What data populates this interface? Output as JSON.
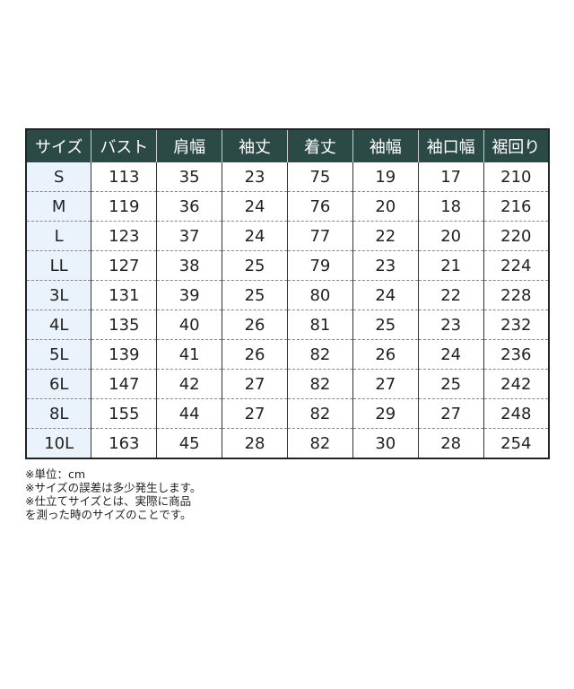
{
  "table": {
    "headers": [
      "サイズ",
      "バスト",
      "肩幅",
      "袖丈",
      "着丈",
      "袖幅",
      "袖口幅",
      "裾回り"
    ],
    "rows": [
      [
        "S",
        "113",
        "35",
        "23",
        "75",
        "19",
        "17",
        "210"
      ],
      [
        "M",
        "119",
        "36",
        "24",
        "76",
        "20",
        "18",
        "216"
      ],
      [
        "L",
        "123",
        "37",
        "24",
        "77",
        "22",
        "20",
        "220"
      ],
      [
        "LL",
        "127",
        "38",
        "25",
        "79",
        "23",
        "21",
        "224"
      ],
      [
        "3L",
        "131",
        "39",
        "25",
        "80",
        "24",
        "22",
        "228"
      ],
      [
        "4L",
        "135",
        "40",
        "26",
        "81",
        "25",
        "23",
        "232"
      ],
      [
        "5L",
        "139",
        "41",
        "26",
        "82",
        "26",
        "24",
        "236"
      ],
      [
        "6L",
        "147",
        "42",
        "27",
        "82",
        "27",
        "25",
        "242"
      ],
      [
        "8L",
        "155",
        "44",
        "27",
        "82",
        "29",
        "27",
        "248"
      ],
      [
        "10L",
        "163",
        "45",
        "28",
        "82",
        "30",
        "28",
        "254"
      ]
    ]
  },
  "notes": [
    "※単位：cm",
    "※サイズの誤差は多少発生します。",
    "※仕立てサイズとは、実際に商品",
    "を測った時のサイズのことです。"
  ],
  "colors": {
    "header_bg": "#2b4a46",
    "size_column_bg": "#eaf2fb"
  }
}
